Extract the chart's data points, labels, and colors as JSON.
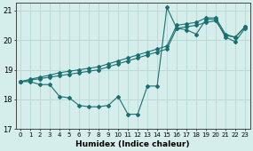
{
  "xlabel": "Humidex (Indice chaleur)",
  "background_color": "#d5eeec",
  "grid_color": "#b8d8d5",
  "line_color": "#1a7070",
  "xlim": [
    -0.5,
    23.5
  ],
  "ylim": [
    17.0,
    21.25
  ],
  "yticks": [
    17,
    18,
    19,
    20,
    21
  ],
  "xtick_labels": [
    "0",
    "1",
    "2",
    "3",
    "4",
    "5",
    "6",
    "7",
    "8",
    "9",
    "10",
    "11",
    "12",
    "13",
    "14",
    "15",
    "16",
    "17",
    "18",
    "19",
    "20",
    "21",
    "22",
    "23"
  ],
  "line1": [
    18.6,
    18.6,
    18.5,
    18.5,
    18.1,
    18.05,
    17.8,
    17.75,
    17.75,
    17.8,
    18.1,
    17.5,
    17.5,
    18.45,
    18.45,
    21.1,
    20.4,
    20.35,
    20.2,
    20.7,
    20.7,
    20.1,
    19.95,
    20.4
  ],
  "line2": [
    18.6,
    18.65,
    18.7,
    18.75,
    18.8,
    18.85,
    18.9,
    18.95,
    19.0,
    19.1,
    19.2,
    19.3,
    19.4,
    19.5,
    19.6,
    19.7,
    20.4,
    20.45,
    20.5,
    20.6,
    20.65,
    20.15,
    20.1,
    20.45
  ],
  "line3": [
    18.6,
    18.68,
    18.75,
    18.82,
    18.9,
    18.95,
    19.0,
    19.05,
    19.1,
    19.2,
    19.3,
    19.4,
    19.5,
    19.6,
    19.7,
    19.8,
    20.5,
    20.55,
    20.6,
    20.75,
    20.75,
    20.2,
    20.1,
    20.45
  ]
}
